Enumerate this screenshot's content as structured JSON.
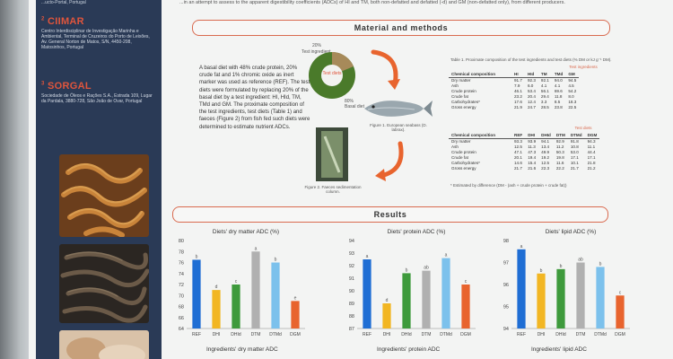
{
  "sidebar": {
    "top_text": "...ucto-Portal, Portugal",
    "institutions": [
      {
        "mark": "2",
        "name": "CIIMAR",
        "address": "Centro Interdisciplinar de Investigação Marinha e Ambiental, Terminal de Cruzeiros do Porto de Leixões, Av. General Norton de Matos, S/N, 4450-208, Matosinhos, Portugal"
      },
      {
        "mark": "3",
        "name": "SORGAL",
        "address": "Sociedade de Óleos e Rações S.A., Estrada 109, Lugar da Pardala, 3880-728, São João de Ovar, Portugal"
      }
    ]
  },
  "intro": "...in an attempt to assess to the apparent digestibility coefficients (ADCs) of HI and TM, both non-defatted and defatted (-d) and GM (non-defatted only), from different producers.",
  "methods": {
    "heading": "Material and methods",
    "text": "A basal diet with 48% crude protein, 20% crude fat and 1% chromic oxide as inert marker was used as reference (REF). The test diets were formulated by replacing 20% of the basal diet by a test ingredient: HI, HId, TM, TMd and GM. The proximate composition of the test ingredients, test diets (Table 1) and faeces (Figure 2) from fish fed such diets were determined to estimate nutrient ADCs.",
    "diagram": {
      "pct_test": "20%",
      "label_test": "Test ingredient",
      "center": "Test diets",
      "pct_basal": "80%",
      "label_basal": "Basal diet"
    },
    "fig1_caption": "Figure 1. European seabass (D. labrax).",
    "fig2_caption": "Figure 2. Faeces sedimentation column."
  },
  "table1": {
    "caption": "Table 1. Proximate composition of the test ingredients and test diets (% DM or kJ g⁻¹ DM).",
    "test_ingredients": {
      "title": "Test ingredients",
      "head": [
        "Chemical composition",
        "HI",
        "HId",
        "TM",
        "TMd",
        "GM"
      ],
      "rows": [
        [
          "Dry matter",
          "91.7",
          "92.3",
          "92.1",
          "94.0",
          "94.5"
        ],
        [
          "Ash",
          "7.9",
          "6.0",
          "4.1",
          "4.1",
          "4.5"
        ],
        [
          "Crude protein",
          "46.1",
          "53.4",
          "56.1",
          "69.6",
          "54.2"
        ],
        [
          "Crude fat",
          "23.2",
          "20.4",
          "29.4",
          "11.8",
          "8.0"
        ],
        [
          "Carbohydrates*",
          "17.6",
          "12.4",
          "3.3",
          "8.5",
          "18.3"
        ],
        [
          "Gross energy",
          "21.9",
          "24.7",
          "28.5",
          "23.8",
          "22.5"
        ]
      ]
    },
    "test_diets": {
      "title": "Test diets",
      "head": [
        "Chemical composition",
        "REF",
        "DHI",
        "DHId",
        "DTM",
        "DTMd",
        "DGM"
      ],
      "rows": [
        [
          "Dry matter",
          "93.3",
          "93.9",
          "94.1",
          "92.9",
          "91.8",
          "94.3"
        ],
        [
          "Ash",
          "12.5",
          "11.3",
          "13.4",
          "11.2",
          "10.8",
          "11.1"
        ],
        [
          "Crude protein",
          "47.1",
          "47.3",
          "49.9",
          "50.3",
          "53.0",
          "44.4"
        ],
        [
          "Crude fat",
          "20.1",
          "19.4",
          "19.2",
          "19.8",
          "17.1",
          "17.1"
        ],
        [
          "Carbohydrates*",
          "14.6",
          "15.4",
          "12.5",
          "11.6",
          "10.1",
          "21.8"
        ],
        [
          "Gross energy",
          "21.7",
          "21.6",
          "22.3",
          "22.2",
          "21.7",
          "21.2"
        ]
      ],
      "footnote": "* Estimated by difference (DM - (ash + crude protein + crude fat))"
    }
  },
  "results": {
    "heading": "Results"
  },
  "chart_data": [
    {
      "type": "bar",
      "title": "Diets' dry matter ADC (%)",
      "categories": [
        "REF",
        "DHI",
        "DHId",
        "DTM",
        "DTMd",
        "DGM"
      ],
      "values": [
        76.5,
        71,
        72,
        78,
        76,
        69
      ],
      "letters": [
        "b",
        "d",
        "c",
        "a",
        "b",
        "e"
      ],
      "yticks": [
        64,
        66,
        68,
        70,
        72,
        74,
        76,
        78,
        80
      ],
      "ylim": [
        64,
        80
      ],
      "colors": [
        "#1f6ed4",
        "#f2b623",
        "#3e9a3c",
        "#b0b0b0",
        "#7cc1ec",
        "#e8642e"
      ]
    },
    {
      "type": "bar",
      "title": "Diets' protein ADC (%)",
      "categories": [
        "REF",
        "DHI",
        "DHId",
        "DTM",
        "DTMd",
        "DGM"
      ],
      "values": [
        92.5,
        89,
        91.4,
        91.6,
        92.6,
        90.5
      ],
      "letters": [
        "a",
        "d",
        "b",
        "ab",
        "a",
        "c"
      ],
      "yticks": [
        87,
        88,
        89,
        90,
        91,
        92,
        93,
        94
      ],
      "ylim": [
        87,
        94
      ],
      "colors": [
        "#1f6ed4",
        "#f2b623",
        "#3e9a3c",
        "#b0b0b0",
        "#7cc1ec",
        "#e8642e"
      ]
    },
    {
      "type": "bar",
      "title": "Diets' lipid ADC (%)",
      "categories": [
        "REF",
        "DHI",
        "DHId",
        "DTM",
        "DTMd",
        "DGM"
      ],
      "values": [
        97.6,
        96.5,
        96.7,
        97,
        96.8,
        95.5
      ],
      "letters": [
        "a",
        "b",
        "b",
        "ab",
        "b",
        "c"
      ],
      "yticks": [
        94,
        95,
        96,
        97,
        98
      ],
      "ylim": [
        94,
        98
      ],
      "colors": [
        "#1f6ed4",
        "#f2b623",
        "#3e9a3c",
        "#b0b0b0",
        "#7cc1ec",
        "#e8642e"
      ]
    }
  ],
  "ingredient_titles": [
    "Ingredients' dry matter ADC",
    "Ingredients' protein ADC",
    "Ingredients' lipid ADC"
  ],
  "colors": {
    "sidebar": "#2a3a56",
    "accent": "#d96a4f",
    "institution_name": "#e0553c"
  }
}
